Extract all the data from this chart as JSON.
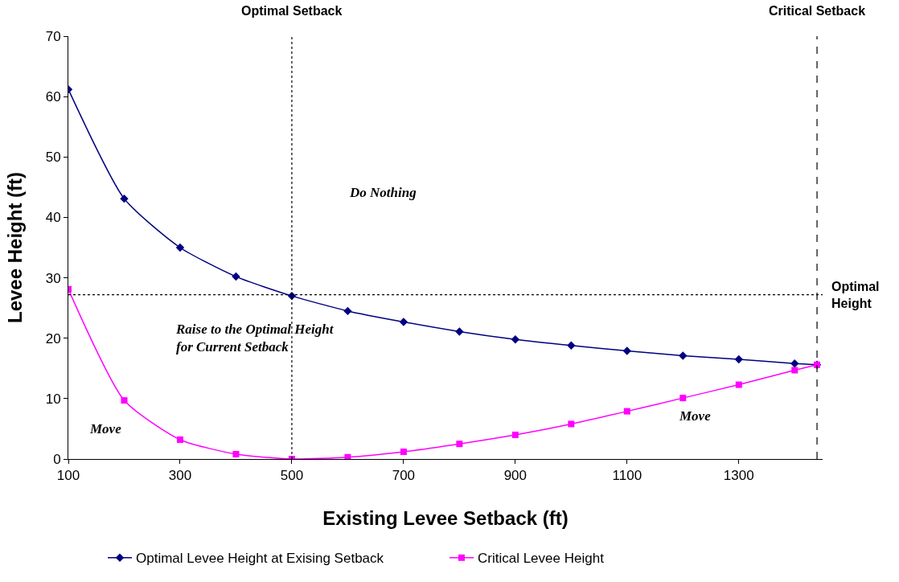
{
  "chart_data": {
    "type": "line",
    "xlabel": "Existing Levee Setback (ft)",
    "ylabel": "Levee Height (ft)",
    "x": [
      100,
      200,
      300,
      400,
      500,
      600,
      700,
      800,
      900,
      1000,
      1100,
      1200,
      1300,
      1400,
      1440
    ],
    "series": [
      {
        "name": "Optimal Levee Height at Exising Setback",
        "color": "#000080",
        "marker": "diamond",
        "values": [
          61.2,
          43.1,
          35.0,
          30.2,
          27.0,
          24.5,
          22.7,
          21.1,
          19.8,
          18.8,
          17.9,
          17.1,
          16.5,
          15.8,
          15.6
        ]
      },
      {
        "name": "Critical Levee Height",
        "color": "#ff00ff",
        "marker": "square",
        "values": [
          28.1,
          9.7,
          3.2,
          0.8,
          0.0,
          0.3,
          1.2,
          2.5,
          4.0,
          5.8,
          7.9,
          10.1,
          12.3,
          14.7,
          15.6
        ]
      }
    ],
    "xlim": [
      100,
      1450
    ],
    "xticks": [
      100,
      300,
      500,
      700,
      900,
      1100,
      1300
    ],
    "ylim": [
      0,
      70
    ],
    "yticks": [
      0,
      10,
      20,
      30,
      40,
      50,
      60,
      70
    ],
    "grid": false,
    "legend": "bottom",
    "line_style": "solid",
    "ref_lines": [
      {
        "axis": "x",
        "value": 500,
        "label": "Optimal Setback",
        "line_style": "dotted",
        "color": "#000000"
      },
      {
        "axis": "y",
        "value": 27.2,
        "label": "Optimal\nHeight",
        "line_style": "dotted",
        "color": "#000000"
      },
      {
        "axis": "x",
        "value": 1440,
        "label": "Critical Setback",
        "line_style": "dashed",
        "color": "#000000"
      }
    ],
    "annotations": [
      "Do Nothing",
      "Raise to the Optimal Height\nfor Current Setback",
      "Move",
      "Move"
    ]
  }
}
